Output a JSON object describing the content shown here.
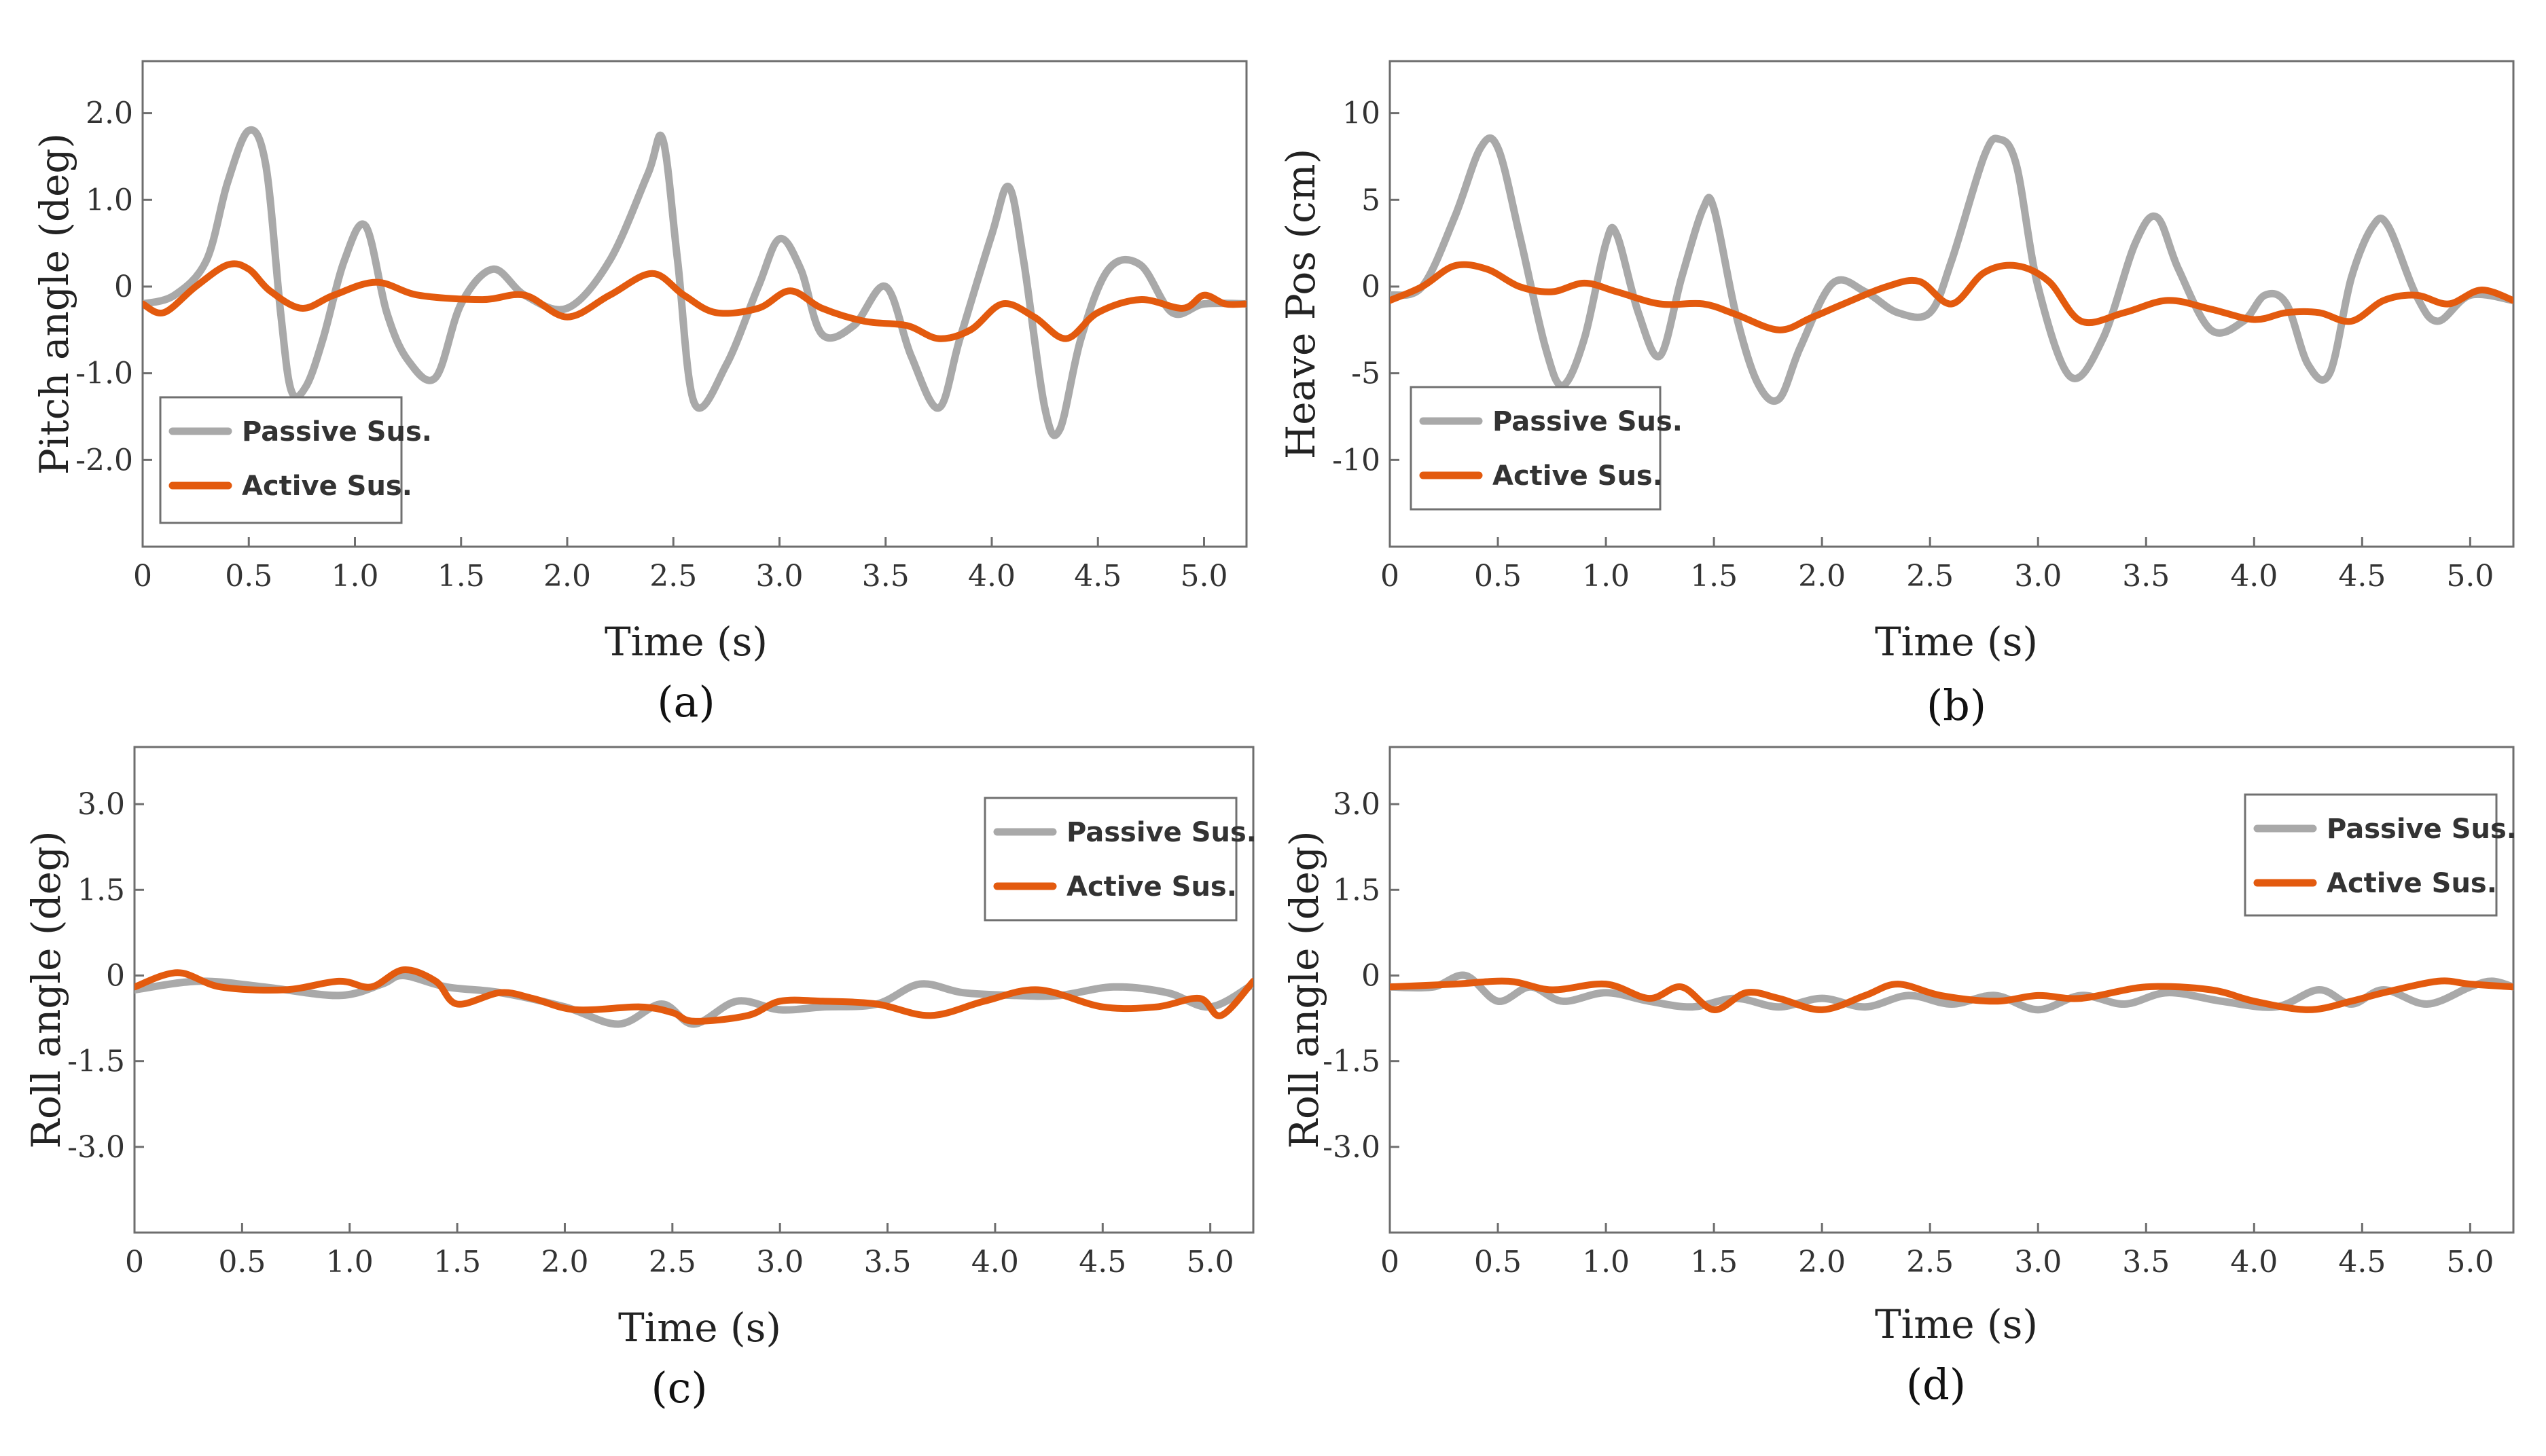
{
  "colors": {
    "passive": "#a9a9a9",
    "active": "#e35a0e"
  },
  "chart_data": [
    {
      "type": "line",
      "panel_label": "(a)",
      "xlabel": "Time (s)",
      "ylabel": "Pitch angle (deg)",
      "xlim": [
        0,
        5.2
      ],
      "ylim": [
        -3.0,
        2.6
      ],
      "xticks": [
        0,
        0.5,
        1.0,
        1.5,
        2.0,
        2.5,
        3.0,
        3.5,
        4.0,
        4.5,
        5.0
      ],
      "xtick_labels": [
        "0",
        "0.5",
        "1.0",
        "1.5",
        "2.0",
        "2.5",
        "3.0",
        "3.5",
        "4.0",
        "4.5",
        "5.0"
      ],
      "yticks": [
        2.0,
        1.0,
        0,
        -1.0,
        -2.0
      ],
      "ytick_labels": [
        "2.0",
        "1.0",
        "0",
        "-1.0",
        "-2.0"
      ],
      "legend": {
        "position": "bottom-left",
        "entries": [
          "Passive Sus.",
          "Active Sus."
        ]
      },
      "series": [
        {
          "name": "Passive Sus.",
          "color_key": "passive",
          "x": [
            0,
            0.15,
            0.3,
            0.4,
            0.5,
            0.58,
            0.65,
            0.7,
            0.77,
            0.85,
            0.95,
            1.05,
            1.15,
            1.25,
            1.38,
            1.5,
            1.65,
            1.8,
            2.0,
            2.2,
            2.38,
            2.45,
            2.52,
            2.6,
            2.75,
            2.9,
            3.0,
            3.1,
            3.2,
            3.35,
            3.5,
            3.62,
            3.75,
            3.85,
            4.0,
            4.08,
            4.15,
            4.25,
            4.32,
            4.42,
            4.55,
            4.7,
            4.85,
            5.0,
            5.2
          ],
          "y": [
            -0.2,
            -0.1,
            0.3,
            1.2,
            1.8,
            1.4,
            -0.3,
            -1.2,
            -1.15,
            -0.6,
            0.3,
            0.7,
            -0.3,
            -0.85,
            -1.05,
            -0.2,
            0.2,
            -0.1,
            -0.25,
            0.3,
            1.3,
            1.7,
            0.3,
            -1.35,
            -0.9,
            0.0,
            0.55,
            0.2,
            -0.55,
            -0.45,
            0.0,
            -0.8,
            -1.4,
            -0.6,
            0.6,
            1.15,
            0.3,
            -1.4,
            -1.65,
            -0.6,
            0.2,
            0.25,
            -0.3,
            -0.2,
            -0.2
          ]
        },
        {
          "name": "Active Sus.",
          "color_key": "active",
          "x": [
            0,
            0.1,
            0.25,
            0.4,
            0.5,
            0.6,
            0.75,
            0.9,
            1.1,
            1.3,
            1.6,
            1.8,
            2.0,
            2.2,
            2.4,
            2.55,
            2.7,
            2.9,
            3.05,
            3.2,
            3.4,
            3.6,
            3.75,
            3.9,
            4.05,
            4.2,
            4.35,
            4.5,
            4.7,
            4.9,
            5.0,
            5.1,
            5.2
          ],
          "y": [
            -0.2,
            -0.3,
            0.0,
            0.25,
            0.2,
            -0.05,
            -0.25,
            -0.1,
            0.05,
            -0.1,
            -0.15,
            -0.1,
            -0.35,
            -0.1,
            0.15,
            -0.1,
            -0.3,
            -0.25,
            -0.05,
            -0.25,
            -0.4,
            -0.45,
            -0.6,
            -0.5,
            -0.2,
            -0.35,
            -0.6,
            -0.3,
            -0.15,
            -0.25,
            -0.1,
            -0.2,
            -0.2
          ]
        }
      ]
    },
    {
      "type": "line",
      "panel_label": "(b)",
      "xlabel": "Time (s)",
      "ylabel": "Heave Pos (cm)",
      "xlim": [
        0,
        5.2
      ],
      "ylim": [
        -15,
        13
      ],
      "xticks": [
        0,
        0.5,
        1.0,
        1.5,
        2.0,
        2.5,
        3.0,
        3.5,
        4.0,
        4.5,
        5.0
      ],
      "xtick_labels": [
        "0",
        "0.5",
        "1.0",
        "1.5",
        "2.0",
        "2.5",
        "3.0",
        "3.5",
        "4.0",
        "4.5",
        "5.0"
      ],
      "yticks": [
        10,
        5,
        0,
        -5,
        -10
      ],
      "ytick_labels": [
        "10",
        "5",
        "0",
        "-5",
        "-10"
      ],
      "legend": {
        "position": "bottom-left",
        "entries": [
          "Passive Sus.",
          "Active Sus."
        ]
      },
      "series": [
        {
          "name": "Passive Sus.",
          "color_key": "passive",
          "x": [
            0,
            0.15,
            0.3,
            0.42,
            0.5,
            0.6,
            0.72,
            0.8,
            0.9,
            1.0,
            1.05,
            1.15,
            1.25,
            1.35,
            1.45,
            1.5,
            1.6,
            1.7,
            1.8,
            1.9,
            2.05,
            2.2,
            2.35,
            2.5,
            2.6,
            2.75,
            2.82,
            2.9,
            3.0,
            3.15,
            3.3,
            3.45,
            3.55,
            3.65,
            3.8,
            3.95,
            4.05,
            4.15,
            4.25,
            4.35,
            4.45,
            4.55,
            4.62,
            4.75,
            4.85,
            5.0,
            5.2
          ],
          "y": [
            -0.5,
            0.0,
            4.0,
            8.0,
            8.0,
            3.0,
            -3.5,
            -5.7,
            -3.0,
            2.5,
            3.0,
            -1.5,
            -4.0,
            0.5,
            4.5,
            4.5,
            -1.5,
            -5.5,
            -6.5,
            -3.5,
            0.2,
            -0.3,
            -1.5,
            -1.5,
            1.5,
            7.5,
            8.5,
            7.0,
            0.0,
            -5.2,
            -3.0,
            2.5,
            4.0,
            1.0,
            -2.5,
            -2.0,
            -0.5,
            -1.0,
            -4.5,
            -5.0,
            0.5,
            3.5,
            3.5,
            -0.5,
            -2.0,
            -0.5,
            -0.8
          ]
        },
        {
          "name": "Active Sus.",
          "color_key": "active",
          "x": [
            0,
            0.15,
            0.3,
            0.45,
            0.6,
            0.75,
            0.9,
            1.05,
            1.25,
            1.45,
            1.6,
            1.8,
            1.95,
            2.1,
            2.3,
            2.45,
            2.6,
            2.75,
            2.9,
            3.05,
            3.2,
            3.4,
            3.6,
            3.8,
            4.0,
            4.15,
            4.3,
            4.45,
            4.6,
            4.75,
            4.9,
            5.05,
            5.2
          ],
          "y": [
            -0.8,
            0.0,
            1.2,
            1.0,
            0.0,
            -0.3,
            0.2,
            -0.3,
            -1.0,
            -1.0,
            -1.6,
            -2.5,
            -1.8,
            -1.0,
            0.0,
            0.3,
            -1.0,
            0.8,
            1.2,
            0.3,
            -2.0,
            -1.5,
            -0.8,
            -1.3,
            -1.9,
            -1.5,
            -1.5,
            -2.0,
            -0.8,
            -0.5,
            -1.0,
            -0.2,
            -0.8
          ]
        }
      ]
    },
    {
      "type": "line",
      "panel_label": "(c)",
      "xlabel": "Time (s)",
      "ylabel": "Roll angle (deg)",
      "xlim": [
        0,
        5.2
      ],
      "ylim": [
        -4.5,
        4.0
      ],
      "xticks": [
        0,
        0.5,
        1.0,
        1.5,
        2.0,
        2.5,
        3.0,
        3.5,
        4.0,
        4.5,
        5.0
      ],
      "xtick_labels": [
        "0",
        "0.5",
        "1.0",
        "1.5",
        "2.0",
        "2.5",
        "3.0",
        "3.5",
        "4.0",
        "4.5",
        "5.0"
      ],
      "yticks": [
        3.0,
        1.5,
        0,
        -1.5,
        -3.0
      ],
      "ytick_labels": [
        "3.0",
        "1.5",
        "0",
        "-1.5",
        "-3.0"
      ],
      "legend": {
        "position": "top-right",
        "entries": [
          "Passive Sus.",
          "Active Sus."
        ]
      },
      "series": [
        {
          "name": "Passive Sus.",
          "color_key": "passive",
          "x": [
            0,
            0.3,
            0.6,
            0.95,
            1.15,
            1.25,
            1.45,
            1.7,
            2.0,
            2.25,
            2.45,
            2.6,
            2.8,
            3.0,
            3.2,
            3.45,
            3.65,
            3.85,
            4.1,
            4.3,
            4.55,
            4.8,
            5.0,
            5.2
          ],
          "y": [
            -0.25,
            -0.1,
            -0.2,
            -0.35,
            -0.15,
            0.0,
            -0.2,
            -0.3,
            -0.55,
            -0.85,
            -0.5,
            -0.85,
            -0.45,
            -0.6,
            -0.55,
            -0.5,
            -0.15,
            -0.3,
            -0.35,
            -0.35,
            -0.2,
            -0.3,
            -0.55,
            -0.15
          ]
        },
        {
          "name": "Active Sus.",
          "color_key": "active",
          "x": [
            0,
            0.2,
            0.4,
            0.7,
            0.95,
            1.1,
            1.25,
            1.4,
            1.5,
            1.7,
            1.85,
            2.05,
            2.35,
            2.5,
            2.6,
            2.85,
            3.0,
            3.2,
            3.45,
            3.7,
            3.95,
            4.2,
            4.5,
            4.75,
            4.95,
            5.05,
            5.2
          ],
          "y": [
            -0.2,
            0.05,
            -0.2,
            -0.25,
            -0.1,
            -0.2,
            0.1,
            -0.1,
            -0.5,
            -0.3,
            -0.4,
            -0.6,
            -0.55,
            -0.65,
            -0.8,
            -0.7,
            -0.45,
            -0.45,
            -0.5,
            -0.7,
            -0.45,
            -0.25,
            -0.55,
            -0.55,
            -0.4,
            -0.7,
            -0.1
          ]
        }
      ]
    },
    {
      "type": "line",
      "panel_label": "(d)",
      "xlabel": "Time (s)",
      "ylabel": "Roll angle (deg)",
      "xlim": [
        0,
        5.2
      ],
      "ylim": [
        -4.5,
        4.0
      ],
      "xticks": [
        0,
        0.5,
        1.0,
        1.5,
        2.0,
        2.5,
        3.0,
        3.5,
        4.0,
        4.5,
        5.0
      ],
      "xtick_labels": [
        "0",
        "0.5",
        "1.0",
        "1.5",
        "2.0",
        "2.5",
        "3.0",
        "3.5",
        "4.0",
        "4.5",
        "5.0"
      ],
      "yticks": [
        3.0,
        1.5,
        0,
        -1.5,
        -3.0
      ],
      "ytick_labels": [
        "3.0",
        "1.5",
        "0",
        "-1.5",
        "-3.0"
      ],
      "legend": {
        "position": "top-right",
        "entries": [
          "Passive Sus.",
          "Active Sus."
        ]
      },
      "series": [
        {
          "name": "Passive Sus.",
          "color_key": "passive",
          "x": [
            0,
            0.2,
            0.35,
            0.5,
            0.65,
            0.8,
            1.0,
            1.2,
            1.4,
            1.6,
            1.8,
            2.0,
            2.2,
            2.4,
            2.6,
            2.8,
            3.0,
            3.2,
            3.4,
            3.6,
            3.85,
            4.1,
            4.3,
            4.45,
            4.6,
            4.8,
            5.0,
            5.1,
            5.2
          ],
          "y": [
            -0.2,
            -0.2,
            0.0,
            -0.45,
            -0.2,
            -0.45,
            -0.3,
            -0.45,
            -0.55,
            -0.4,
            -0.55,
            -0.4,
            -0.55,
            -0.35,
            -0.5,
            -0.35,
            -0.6,
            -0.35,
            -0.5,
            -0.3,
            -0.45,
            -0.55,
            -0.25,
            -0.5,
            -0.25,
            -0.5,
            -0.2,
            -0.1,
            -0.2
          ]
        },
        {
          "name": "Active Sus.",
          "color_key": "active",
          "x": [
            0,
            0.3,
            0.55,
            0.75,
            1.0,
            1.2,
            1.35,
            1.5,
            1.65,
            1.8,
            2.0,
            2.2,
            2.35,
            2.55,
            2.8,
            3.0,
            3.2,
            3.5,
            3.8,
            4.0,
            4.25,
            4.45,
            4.6,
            4.85,
            5.0,
            5.2
          ],
          "y": [
            -0.2,
            -0.15,
            -0.1,
            -0.25,
            -0.15,
            -0.4,
            -0.2,
            -0.6,
            -0.3,
            -0.4,
            -0.6,
            -0.35,
            -0.15,
            -0.35,
            -0.45,
            -0.35,
            -0.4,
            -0.2,
            -0.25,
            -0.45,
            -0.6,
            -0.45,
            -0.3,
            -0.1,
            -0.15,
            -0.2
          ]
        }
      ]
    }
  ]
}
